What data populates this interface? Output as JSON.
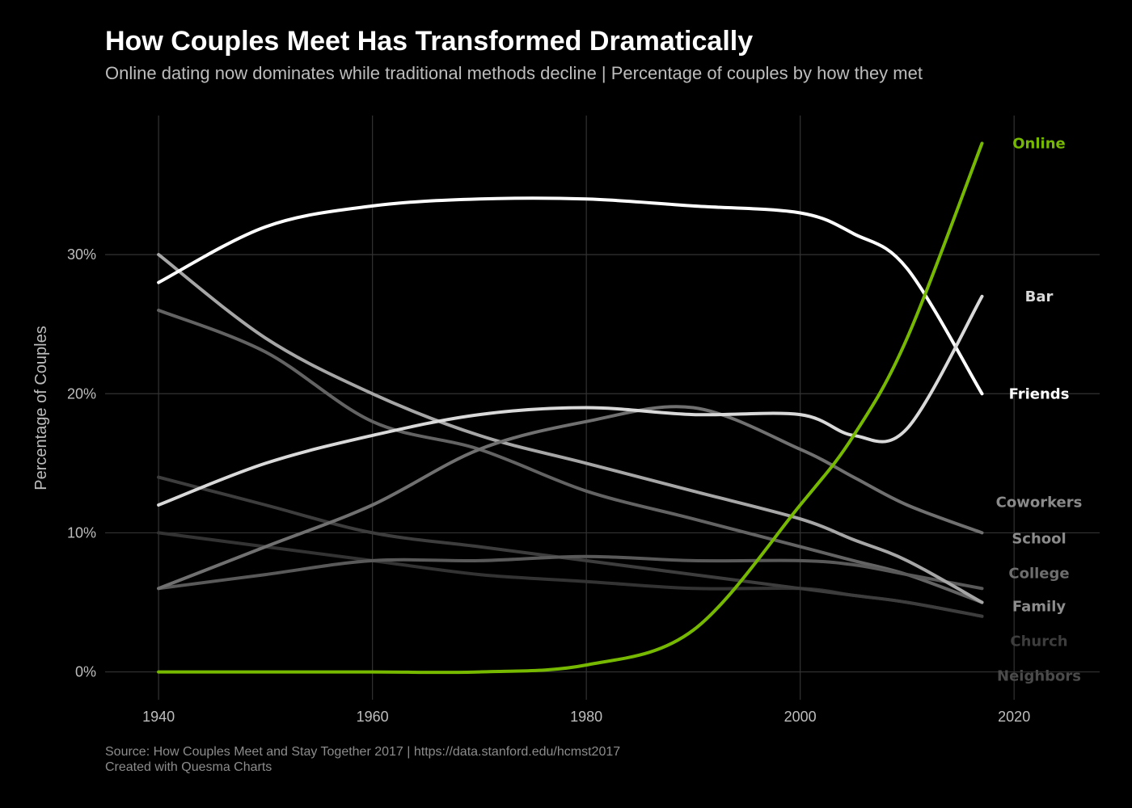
{
  "header": {
    "title": "How Couples Meet Has Transformed Dramatically",
    "subtitle": "Online dating now dominates while traditional methods decline | Percentage of couples by how they met"
  },
  "footer": {
    "source": "Source: How Couples Meet and Stay Together 2017 | https://data.stanford.edu/hcmst2017",
    "credit": "Created with Quesma Charts"
  },
  "chart_data": {
    "type": "line",
    "title": "How Couples Meet Has Transformed Dramatically",
    "subtitle": "Online dating now dominates while traditional methods decline | Percentage of couples by how they met",
    "xlabel": "",
    "ylabel": "Percentage of Couples",
    "xlim": [
      1935,
      2028
    ],
    "ylim": [
      -2,
      40
    ],
    "x_ticks": [
      1940,
      1960,
      1980,
      2000,
      2020
    ],
    "x_tick_labels": [
      "1940",
      "1960",
      "1980",
      "2000",
      "2020"
    ],
    "y_ticks": [
      0,
      10,
      20,
      30
    ],
    "y_tick_labels": [
      "0%",
      "10%",
      "20%",
      "30%"
    ],
    "grid": true,
    "legend": "direct labels at right end of lines",
    "x": [
      1940,
      1950,
      1960,
      1970,
      1980,
      1990,
      2000,
      2005,
      2010,
      2017
    ],
    "series": [
      {
        "name": "Online",
        "color": "#76b900",
        "width": 4,
        "values": [
          0,
          0,
          0,
          0,
          0.5,
          3,
          12,
          17,
          24,
          38
        ]
      },
      {
        "name": "Bar",
        "color": "#d9d9d9",
        "width": 4,
        "values": [
          12,
          15,
          17,
          18.5,
          19,
          18.5,
          18.5,
          17,
          17.5,
          27
        ]
      },
      {
        "name": "Friends",
        "color": "#ffffff",
        "width": 4,
        "values": [
          28,
          32,
          33.5,
          34,
          34,
          33.5,
          33,
          31.5,
          29,
          20
        ]
      },
      {
        "name": "Coworkers",
        "color": "#707070",
        "width": 4,
        "values": [
          6,
          9,
          12,
          16,
          18,
          19,
          16,
          14,
          12,
          10
        ]
      },
      {
        "name": "School",
        "color": "#a6a6a6",
        "width": 4,
        "values": [
          30,
          24,
          20,
          17,
          15,
          13,
          11,
          9.5,
          8,
          5
        ]
      },
      {
        "name": "College",
        "color": "#595959",
        "width": 4,
        "values": [
          6,
          7,
          8,
          8,
          8.3,
          8,
          8,
          7.7,
          7,
          6
        ]
      },
      {
        "name": "Family",
        "color": "#636363",
        "width": 4,
        "values": [
          26,
          23,
          18,
          16,
          13,
          11,
          9,
          8,
          7,
          5
        ]
      },
      {
        "name": "Church",
        "color": "#3d3d3d",
        "width": 4,
        "values": [
          14,
          12,
          10,
          9,
          8,
          7,
          6,
          5.5,
          5,
          4
        ]
      },
      {
        "name": "Neighbors",
        "color": "#333333",
        "width": 4,
        "values": [
          10,
          9,
          8,
          7,
          6.5,
          6,
          6,
          5.5,
          5,
          4
        ]
      }
    ],
    "end_labels": [
      {
        "name": "Online",
        "color": "#76b900",
        "y": 38
      },
      {
        "name": "Bar",
        "color": "#d9d9d9",
        "y": 27
      },
      {
        "name": "Friends",
        "color": "#ffffff",
        "y": 20
      },
      {
        "name": "Coworkers",
        "color": "#8a8a8a",
        "y": 12.2
      },
      {
        "name": "School",
        "color": "#8a8a8a",
        "y": 9.6
      },
      {
        "name": "College",
        "color": "#6e6e6e",
        "y": 7.1
      },
      {
        "name": "Family",
        "color": "#8c8c8c",
        "y": 4.7
      },
      {
        "name": "Church",
        "color": "#3d3d3d",
        "y": 2.2
      },
      {
        "name": "Neighbors",
        "color": "#4a4a4a",
        "y": -0.3
      }
    ]
  }
}
